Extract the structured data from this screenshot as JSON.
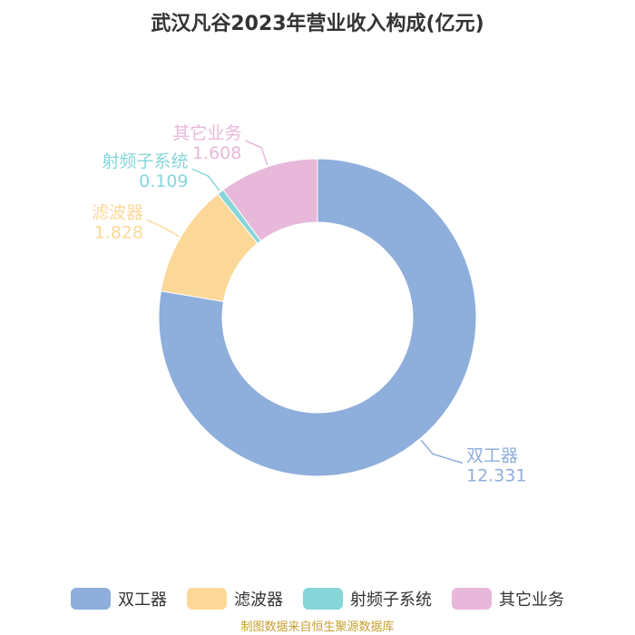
{
  "title": "武汉凡谷2023年营业收入构成(亿元)",
  "source": "制图数据来自恒生聚源数据库",
  "colors": {
    "双工器": "#8eaedb",
    "滤波器": "#fcd898",
    "射频子系统": "#86d6d9",
    "其它业务": "#e7b8d9"
  },
  "chart_data": {
    "type": "pie",
    "style": "donut",
    "title": "武汉凡谷2023年营业收入构成(亿元)",
    "slices": [
      {
        "label": "双工器",
        "value": 12.331,
        "value_text": "12.331"
      },
      {
        "label": "滤波器",
        "value": 1.828,
        "value_text": "1.828"
      },
      {
        "label": "射频子系统",
        "value": 0.109,
        "value_text": "0.109"
      },
      {
        "label": "其它业务",
        "value": 1.608,
        "value_text": "1.608"
      }
    ],
    "legend": {
      "position": "bottom",
      "entries": [
        "双工器",
        "滤波器",
        "射频子系统",
        "其它业务"
      ]
    }
  }
}
